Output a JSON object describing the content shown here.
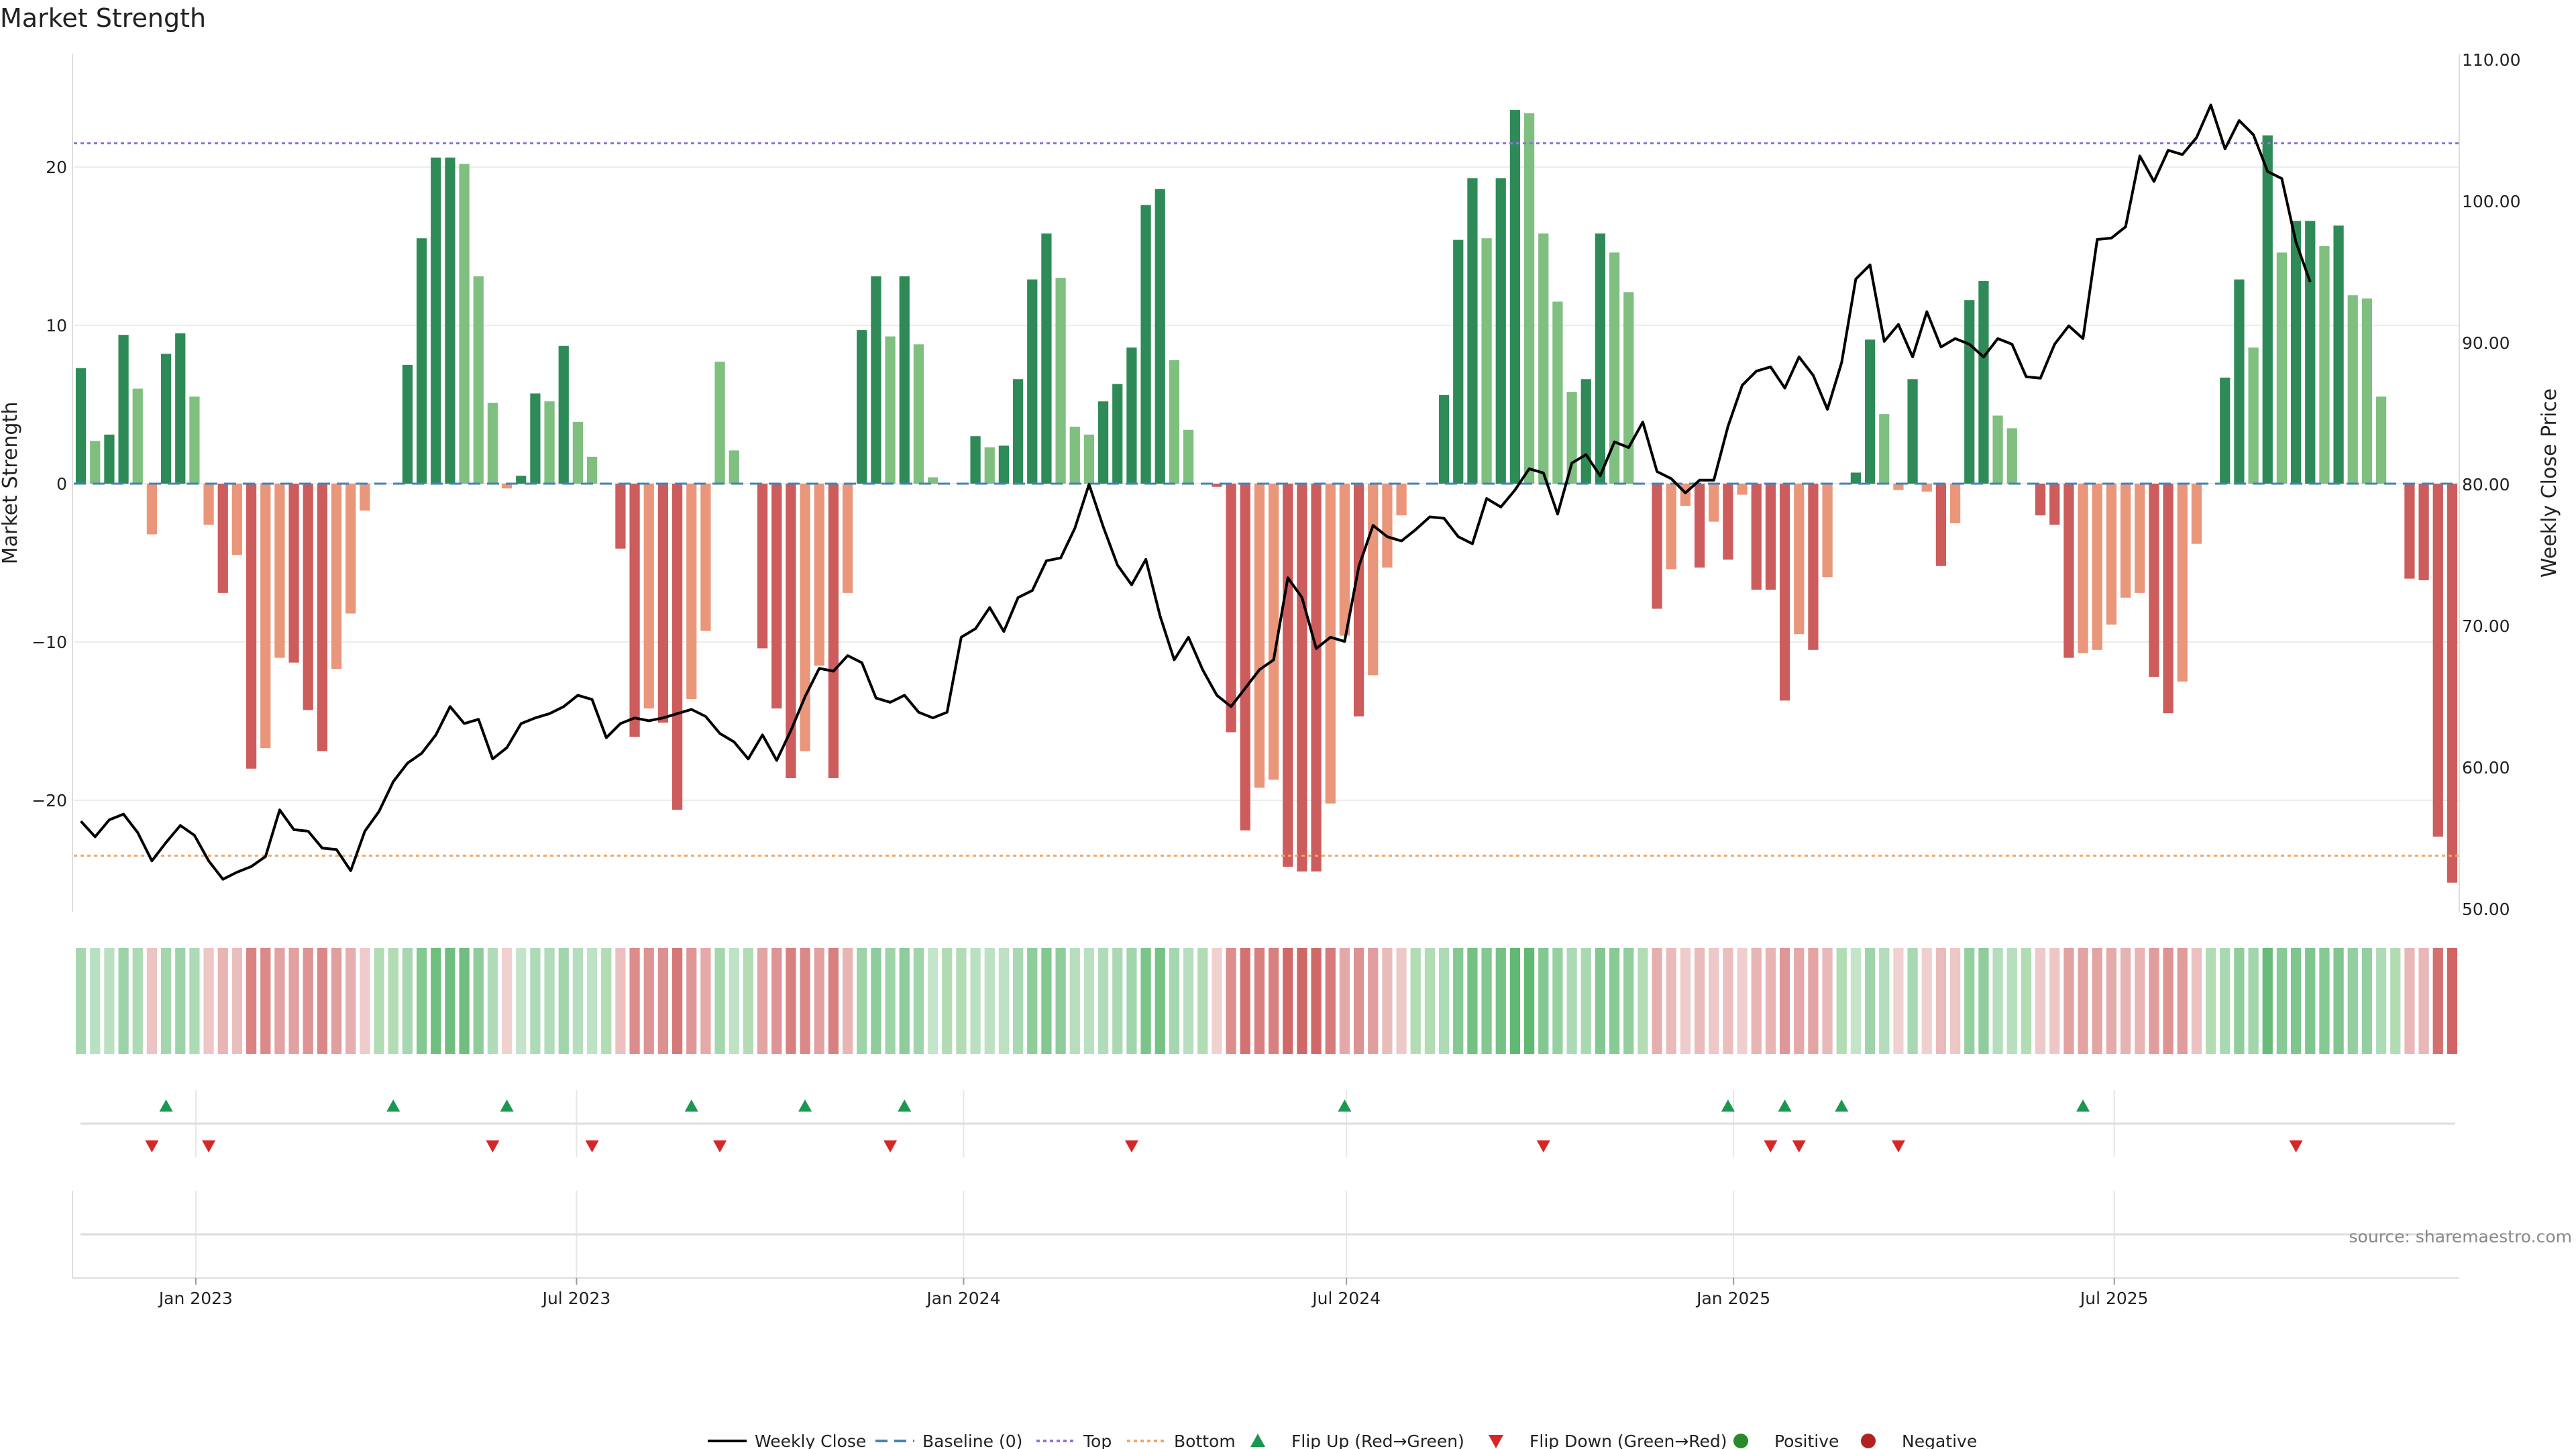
{
  "chart_data": {
    "type": "bar",
    "title": "Market Strength",
    "ylabel": "Market Strength",
    "ylabel_right": "Weekly Close Price",
    "ylim": [
      -27.5,
      27
    ],
    "ylim_right": [
      50,
      110
    ],
    "yticks": [
      20,
      10,
      0,
      -10,
      -20
    ],
    "ytick_labels": [
      "20",
      "10",
      "0",
      "−10",
      "−20"
    ],
    "yticks_right": [
      110,
      100,
      90,
      80,
      70,
      60,
      50
    ],
    "ytick_labels_right": [
      "110.00",
      "100.00",
      "90.00",
      "80.00",
      "70.00",
      "60.00",
      "50.00"
    ],
    "x_start": "2022-11-04",
    "x_end": "2025-12-12",
    "x_ticks": [
      "2023-01-01",
      "2023-07-01",
      "2024-01-01",
      "2024-07-01",
      "2025-01-01",
      "2025-07-01"
    ],
    "x_tick_labels": [
      "Jan 2023",
      "Jul 2023",
      "Jan 2024",
      "Jul 2024",
      "Jan 2025",
      "Jul 2025"
    ],
    "top_line": 21.5,
    "bottom_line": -23.5,
    "strength": [
      7.3,
      2.7,
      3.1,
      9.4,
      6.0,
      -3.2,
      8.2,
      9.5,
      5.5,
      -2.6,
      -6.9,
      -4.5,
      -18.0,
      -16.7,
      -11.0,
      -11.3,
      -14.3,
      -16.9,
      -11.7,
      -8.2,
      -1.7,
      0,
      0,
      7.5,
      15.5,
      20.6,
      20.6,
      20.2,
      13.1,
      5.1,
      -0.3,
      0.5,
      5.7,
      5.2,
      8.7,
      3.9,
      1.7,
      0,
      -4.1,
      -16.0,
      -14.2,
      -15.1,
      -20.6,
      -13.6,
      -9.3,
      7.7,
      2.1,
      0,
      -10.4,
      -14.2,
      -18.6,
      -16.9,
      -11.5,
      -18.6,
      -6.9,
      9.7,
      13.1,
      9.3,
      13.1,
      8.8,
      0.4,
      0,
      0,
      3.0,
      2.3,
      2.4,
      6.6,
      12.9,
      15.8,
      13.0,
      3.6,
      3.1,
      5.2,
      6.3,
      8.6,
      17.6,
      18.6,
      7.8,
      3.4,
      0,
      -0.2,
      -15.7,
      -21.9,
      -19.2,
      -18.7,
      -24.2,
      -24.5,
      -24.5,
      -20.2,
      -9.6,
      -14.7,
      -12.1,
      -5.3,
      -2.0,
      0,
      0,
      5.6,
      15.4,
      19.3,
      15.5,
      19.3,
      23.6,
      23.4,
      15.8,
      11.5,
      5.8,
      6.6,
      15.8,
      14.6,
      12.1,
      0,
      -7.9,
      -5.4,
      -1.4,
      -5.3,
      -2.4,
      -4.8,
      -0.7,
      -6.7,
      -6.7,
      -13.7,
      -9.5,
      -10.5,
      -5.9,
      0,
      0.7,
      9.1,
      4.4,
      -0.4,
      6.6,
      -0.5,
      -5.2,
      -2.5,
      11.6,
      12.8,
      4.3,
      3.5,
      0,
      -2.0,
      -2.6,
      -11.0,
      -10.7,
      -10.5,
      -8.9,
      -7.2,
      -6.9,
      -12.2,
      -14.5,
      -12.5,
      -3.8,
      0,
      6.7,
      12.9,
      8.6,
      22.0,
      14.6,
      16.6,
      16.6,
      15.0,
      16.3,
      11.9,
      11.7,
      5.5,
      0,
      -6.0,
      -6.1,
      -22.3,
      -25.2
    ],
    "close": [
      56.2,
      55.1,
      56.3,
      56.7,
      55.4,
      53.4,
      54.7,
      55.9,
      55.2,
      53.4,
      52.1,
      52.6,
      53.0,
      53.7,
      57.0,
      55.6,
      55.5,
      54.3,
      54.2,
      52.7,
      55.5,
      56.9,
      59.0,
      60.3,
      61.0,
      62.3,
      64.3,
      63.1,
      63.4,
      60.6,
      61.4,
      63.1,
      63.5,
      63.8,
      64.3,
      65.1,
      64.8,
      62.1,
      63.1,
      63.5,
      63.3,
      63.5,
      63.8,
      64.1,
      63.6,
      62.4,
      61.8,
      60.6,
      62.3,
      60.5,
      62.6,
      65.0,
      67.0,
      66.8,
      67.9,
      67.4,
      64.9,
      64.6,
      65.1,
      63.9,
      63.5,
      63.9,
      69.2,
      69.8,
      71.3,
      69.6,
      72.0,
      72.5,
      74.6,
      74.8,
      76.9,
      80.0,
      77.0,
      74.3,
      72.9,
      74.7,
      70.7,
      67.6,
      69.2,
      66.9,
      65.1,
      64.3,
      65.6,
      66.9,
      67.6,
      73.4,
      72.0,
      68.4,
      69.2,
      68.9,
      74.2,
      77.1,
      76.3,
      76.0,
      76.8,
      77.7,
      77.6,
      76.3,
      75.8,
      79.0,
      78.4,
      79.6,
      81.1,
      80.8,
      77.9,
      81.5,
      82.1,
      80.6,
      83.0,
      82.6,
      84.4,
      80.9,
      80.4,
      79.4,
      80.3,
      80.3,
      84.1,
      87.0,
      88.0,
      88.3,
      86.8,
      89.0,
      87.7,
      85.3,
      88.6,
      94.5,
      95.5,
      90.1,
      91.3,
      89.0,
      92.2,
      89.7,
      90.3,
      89.9,
      89.0,
      90.3,
      89.9,
      87.6,
      87.5,
      89.9,
      91.2,
      90.3,
      97.3,
      97.4,
      98.2,
      103.2,
      101.4,
      103.6,
      103.3,
      104.5,
      106.8,
      103.7,
      105.7,
      104.7,
      102.1,
      101.6,
      97.1,
      94.3
    ],
    "flip_up_idx": [
      6,
      22,
      30,
      43,
      51,
      58,
      89,
      116,
      120,
      124,
      141
    ],
    "flip_down_idx": [
      5,
      9,
      29,
      36,
      45,
      57,
      74,
      103,
      119,
      121,
      128,
      156
    ],
    "legend": [
      "Weekly Close",
      "Baseline (0)",
      "Top",
      "Bottom",
      "Flip Up (Red→Green)",
      "Flip Down (Green→Red)",
      "Positive",
      "Negative"
    ],
    "colors": {
      "pos_strong": "#2e8b57",
      "pos_light": "#7fbf7f",
      "neg_strong": "#cd5c5c",
      "neg_light": "#e9967a",
      "close_line": "#000000",
      "baseline": "#4682b4",
      "top": "#9370db",
      "bottom": "#f4a460",
      "flip_up": "#1a9850",
      "flip_down": "#d62728",
      "legend_positive": "#2a8a2a",
      "legend_negative": "#b22222"
    }
  },
  "source": "source: sharemaestro.com"
}
